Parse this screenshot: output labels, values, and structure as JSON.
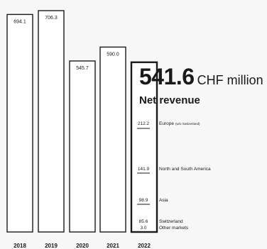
{
  "chart_data": {
    "type": "bar",
    "categories": [
      "2018",
      "2019",
      "2020",
      "2021",
      "2022"
    ],
    "values": [
      694.1,
      706.3,
      545.7,
      590.0,
      541.6
    ],
    "value_labels": [
      "694.1",
      "706.3",
      "545.7",
      "590.0",
      ""
    ],
    "highlight": {
      "category": "2022",
      "value": "541.6",
      "unit": "CHF million",
      "subtitle": "Net revenue",
      "segments": [
        {
          "name": "Europe",
          "note": "(w/o Switzerland)",
          "value": 212.2,
          "label": "212.2"
        },
        {
          "name": "North and South America",
          "note": "",
          "value": 141.9,
          "label": "141.9"
        },
        {
          "name": "Asia",
          "note": "",
          "value": 98.9,
          "label": "98.9"
        },
        {
          "name": "Switzerland",
          "note": "",
          "value": 85.6,
          "label": "85.6"
        },
        {
          "name": "Other markets",
          "note": "",
          "value": 3.0,
          "label": "3.0"
        }
      ]
    },
    "ylim": [
      0,
      706.3
    ],
    "grid": false,
    "legend": "none"
  }
}
